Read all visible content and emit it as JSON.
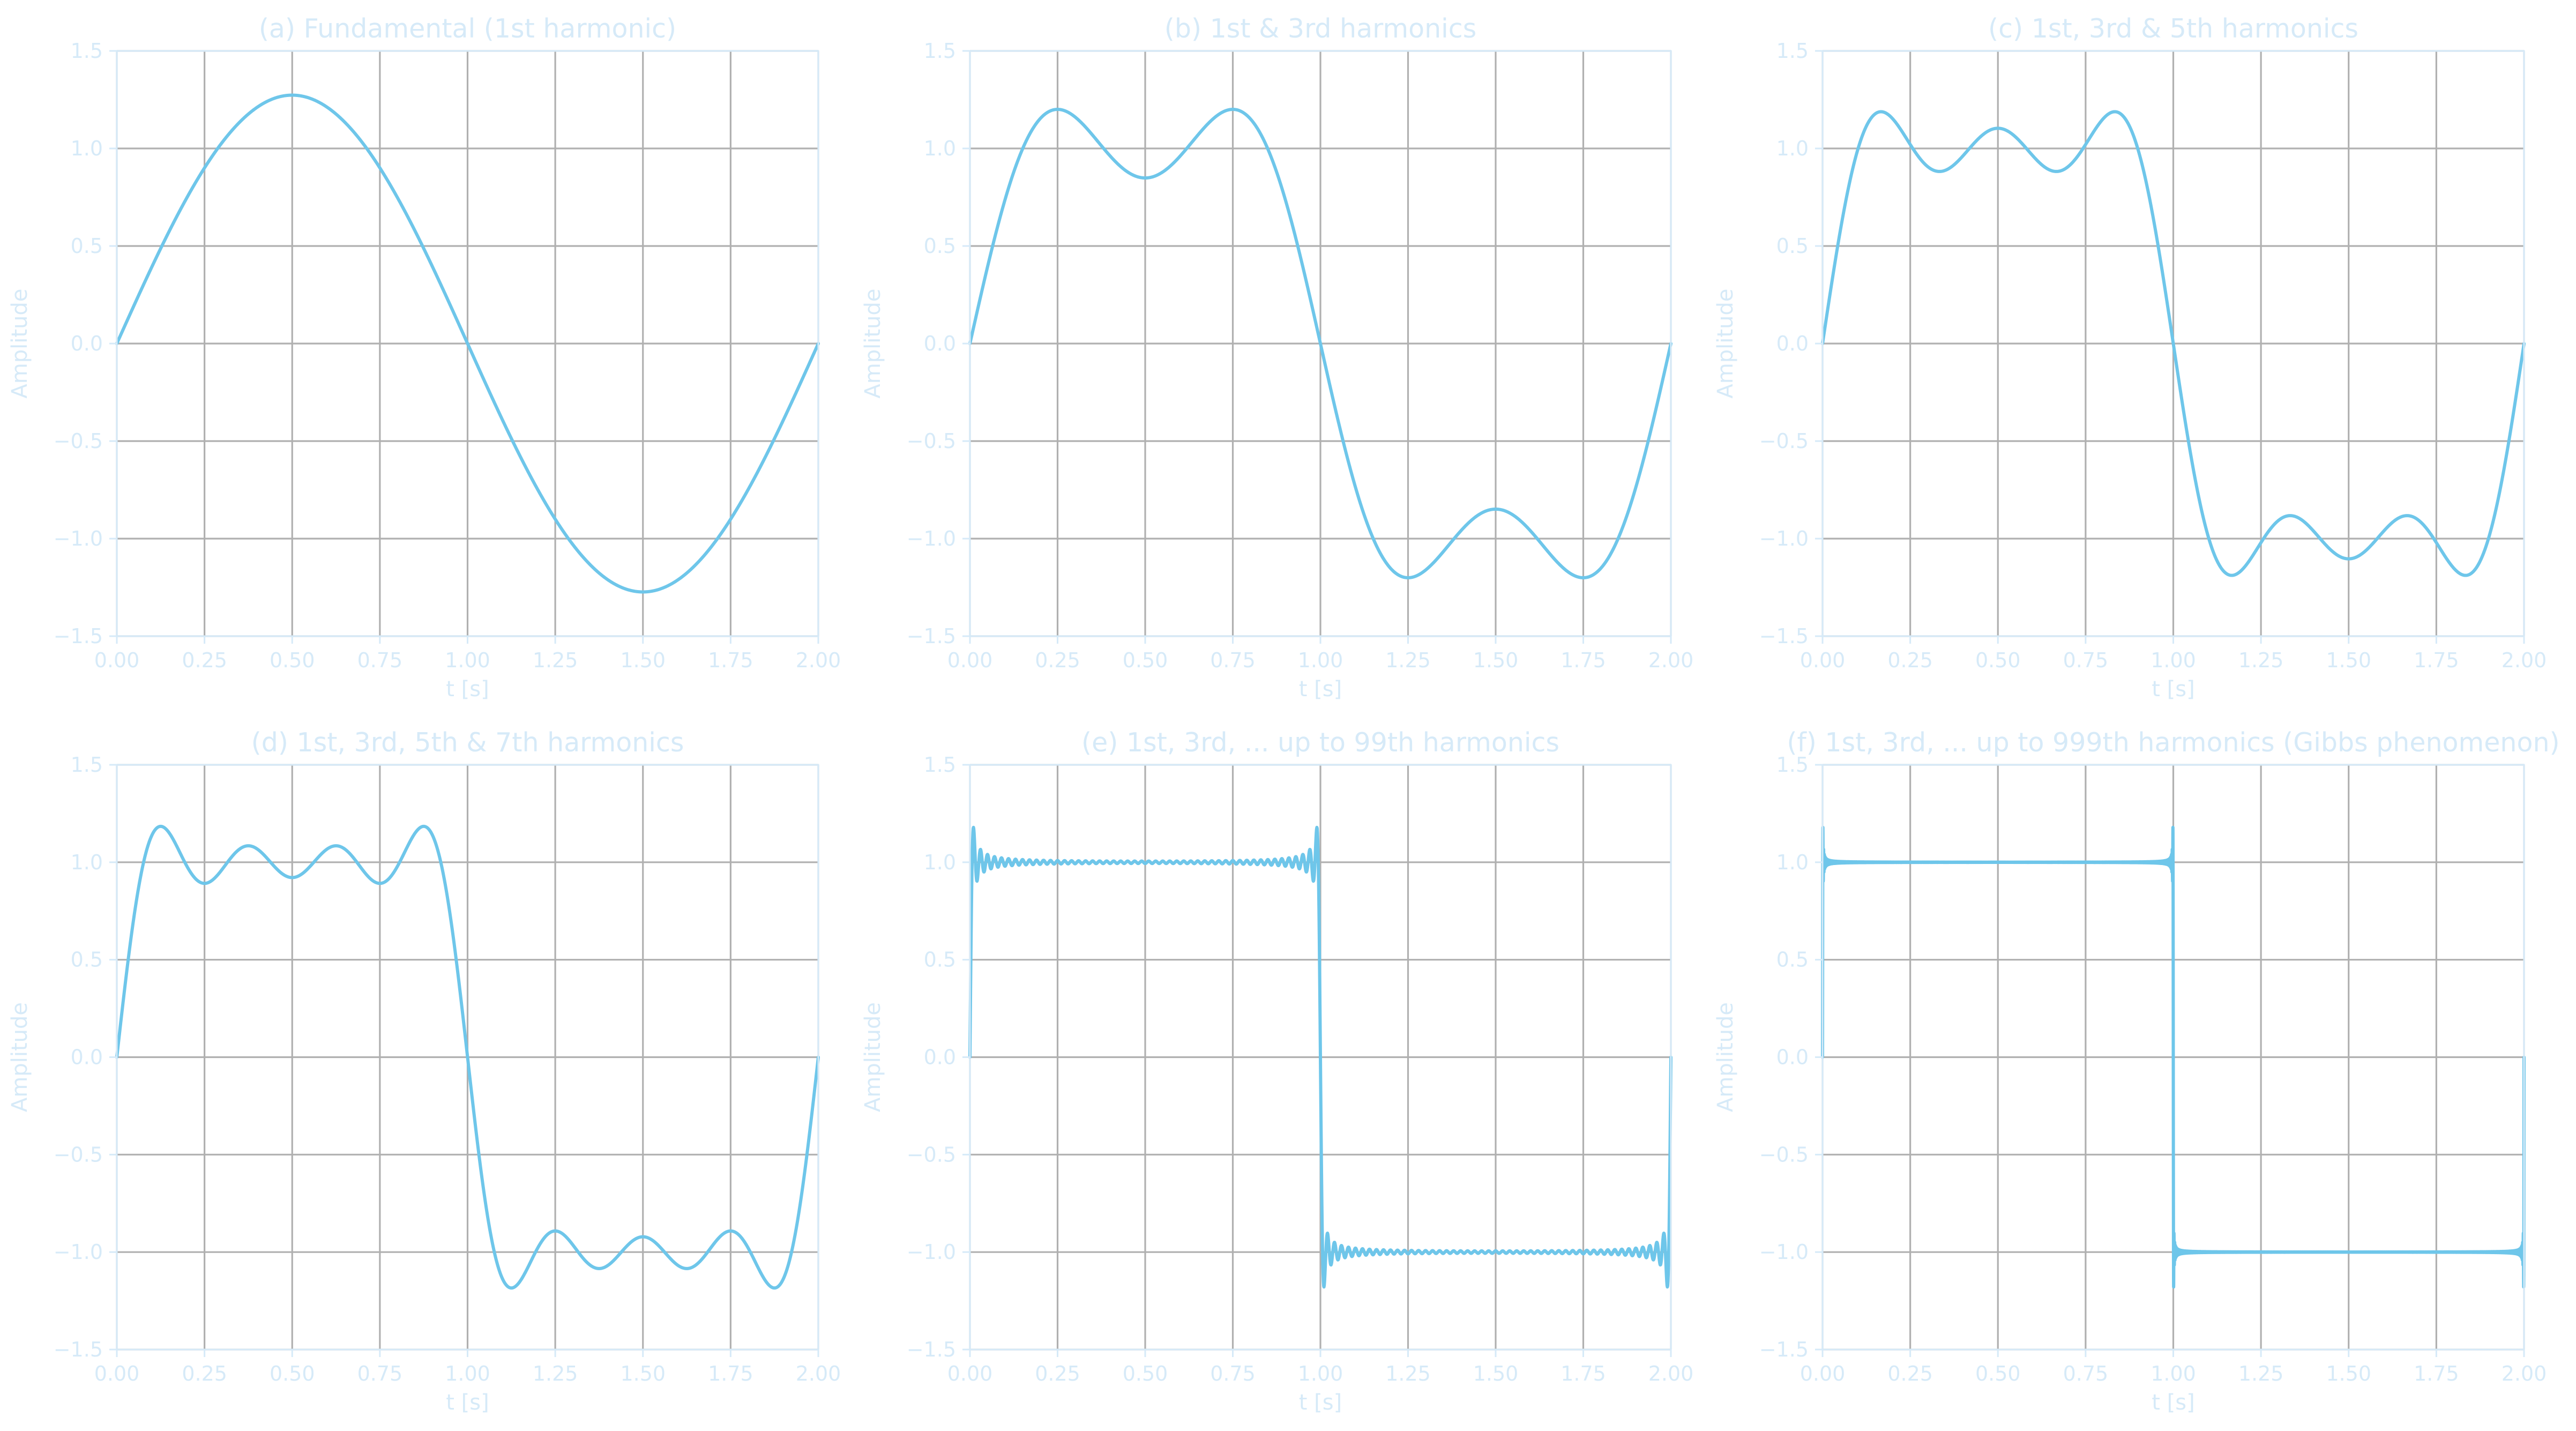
{
  "colors": {
    "series": "#6ec6ea",
    "text": "#d6eaf8",
    "grid": "#b0b0b0",
    "frame": "#d6eaf8",
    "background": "#ffffff"
  },
  "chart_data": [
    {
      "type": "line",
      "title": "(a) Fundamental (1st harmonic)",
      "xlabel": "t [s]",
      "ylabel": "Amplitude",
      "xlim": [
        0,
        2
      ],
      "ylim": [
        -1.5,
        1.5
      ],
      "grid": true,
      "x_ticks": [
        "0.00",
        "0.25",
        "0.50",
        "0.75",
        "1.00",
        "1.25",
        "1.50",
        "1.75",
        "2.00"
      ],
      "y_ticks": [
        "−1.5",
        "−1.0",
        "−0.5",
        "0.0",
        "0.5",
        "1.0",
        "1.5"
      ],
      "series": [
        {
          "function": "4/pi * sum_k sin(2*pi*k*t/2)/k",
          "harmonics": [
            1
          ],
          "x_range": [
            0,
            2
          ]
        }
      ]
    },
    {
      "type": "line",
      "title": "(b) 1st & 3rd harmonics",
      "xlabel": "t [s]",
      "ylabel": "Amplitude",
      "xlim": [
        0,
        2
      ],
      "ylim": [
        -1.5,
        1.5
      ],
      "grid": true,
      "x_ticks": [
        "0.00",
        "0.25",
        "0.50",
        "0.75",
        "1.00",
        "1.25",
        "1.50",
        "1.75",
        "2.00"
      ],
      "y_ticks": [
        "−1.5",
        "−1.0",
        "−0.5",
        "0.0",
        "0.5",
        "1.0",
        "1.5"
      ],
      "series": [
        {
          "function": "4/pi * sum_k sin(2*pi*k*t/2)/k",
          "harmonics": [
            1,
            3
          ],
          "x_range": [
            0,
            2
          ]
        }
      ]
    },
    {
      "type": "line",
      "title": "(c) 1st, 3rd & 5th harmonics",
      "xlabel": "t [s]",
      "ylabel": "Amplitude",
      "xlim": [
        0,
        2
      ],
      "ylim": [
        -1.5,
        1.5
      ],
      "grid": true,
      "x_ticks": [
        "0.00",
        "0.25",
        "0.50",
        "0.75",
        "1.00",
        "1.25",
        "1.50",
        "1.75",
        "2.00"
      ],
      "y_ticks": [
        "−1.5",
        "−1.0",
        "−0.5",
        "0.0",
        "0.5",
        "1.0",
        "1.5"
      ],
      "series": [
        {
          "function": "4/pi * sum_k sin(2*pi*k*t/2)/k",
          "harmonics": [
            1,
            3,
            5
          ],
          "x_range": [
            0,
            2
          ]
        }
      ]
    },
    {
      "type": "line",
      "title": "(d) 1st, 3rd, 5th & 7th harmonics",
      "xlabel": "t [s]",
      "ylabel": "Amplitude",
      "xlim": [
        0,
        2
      ],
      "ylim": [
        -1.5,
        1.5
      ],
      "grid": true,
      "x_ticks": [
        "0.00",
        "0.25",
        "0.50",
        "0.75",
        "1.00",
        "1.25",
        "1.50",
        "1.75",
        "2.00"
      ],
      "y_ticks": [
        "−1.5",
        "−1.0",
        "−0.5",
        "0.0",
        "0.5",
        "1.0",
        "1.5"
      ],
      "series": [
        {
          "function": "4/pi * sum_k sin(2*pi*k*t/2)/k",
          "harmonics": [
            1,
            3,
            5,
            7
          ],
          "x_range": [
            0,
            2
          ]
        }
      ]
    },
    {
      "type": "line",
      "title": "(e) 1st, 3rd, ... up to 99th harmonics",
      "xlabel": "t [s]",
      "ylabel": "Amplitude",
      "xlim": [
        0,
        2
      ],
      "ylim": [
        -1.5,
        1.5
      ],
      "grid": true,
      "x_ticks": [
        "0.00",
        "0.25",
        "0.50",
        "0.75",
        "1.00",
        "1.25",
        "1.50",
        "1.75",
        "2.00"
      ],
      "y_ticks": [
        "−1.5",
        "−1.0",
        "−0.5",
        "0.0",
        "0.5",
        "1.0",
        "1.5"
      ],
      "series": [
        {
          "function": "4/pi * sum_k sin(2*pi*k*t/2)/k",
          "harmonics_odd_up_to": 99,
          "x_range": [
            0,
            2
          ]
        }
      ]
    },
    {
      "type": "line",
      "title": "(f) 1st, 3rd, ... up to 999th harmonics (Gibbs phenomenon)",
      "xlabel": "t [s]",
      "ylabel": "Amplitude",
      "xlim": [
        0,
        2
      ],
      "ylim": [
        -1.5,
        1.5
      ],
      "grid": true,
      "x_ticks": [
        "0.00",
        "0.25",
        "0.50",
        "0.75",
        "1.00",
        "1.25",
        "1.50",
        "1.75",
        "2.00"
      ],
      "y_ticks": [
        "−1.5",
        "−1.0",
        "−0.5",
        "0.0",
        "0.5",
        "1.0",
        "1.5"
      ],
      "series": [
        {
          "function": "4/pi * sum_k sin(2*pi*k*t/2)/k",
          "harmonics_odd_up_to": 999,
          "x_range": [
            0,
            2
          ]
        }
      ]
    }
  ]
}
